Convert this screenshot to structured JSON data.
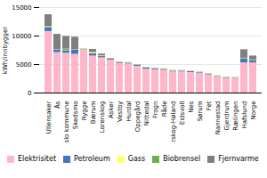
{
  "chart_data": {
    "type": "bar",
    "stacked": true,
    "categories": [
      "Ullensaker",
      "Ås",
      "Oslo kommune",
      "Skedsmo",
      "Rygge",
      "Bærum",
      "Lorenskog",
      "Asker",
      "Vestby",
      "Hurdal",
      "Oppegård",
      "Nittedal",
      "Frogn",
      "Råde",
      "Aurskog-Høland",
      "Eidsvoll",
      "Nes",
      "Sørum",
      "Fet",
      "Nannestad",
      "Gjerdrum",
      "Rælingen",
      "Hafslund",
      "Norge"
    ],
    "series": [
      {
        "name": "Elektrisitet",
        "color": "#ffb6c8",
        "values": [
          10800,
          7100,
          7000,
          6800,
          7500,
          6500,
          6200,
          5800,
          5200,
          5100,
          4700,
          4200,
          4100,
          4000,
          3700,
          3700,
          3600,
          3500,
          3200,
          2800,
          2600,
          2500,
          5300,
          5300
        ]
      },
      {
        "name": "Petroleum",
        "color": "#4472c4",
        "values": [
          700,
          400,
          400,
          700,
          100,
          400,
          200,
          200,
          150,
          150,
          200,
          200,
          150,
          150,
          150,
          150,
          150,
          100,
          100,
          100,
          100,
          100,
          700,
          400
        ]
      },
      {
        "name": "Gass",
        "color": "#ffff66",
        "values": [
          100,
          50,
          50,
          50,
          100,
          200,
          100,
          50,
          50,
          50,
          50,
          50,
          50,
          50,
          50,
          50,
          50,
          50,
          50,
          50,
          50,
          50,
          50,
          50
        ]
      },
      {
        "name": "Biobrensel",
        "color": "#70ad47",
        "values": [
          50,
          50,
          300,
          50,
          50,
          50,
          50,
          50,
          50,
          50,
          50,
          50,
          50,
          50,
          50,
          50,
          50,
          50,
          50,
          50,
          50,
          50,
          50,
          50
        ]
      },
      {
        "name": "Fjernvarme",
        "color": "#7f7f7f",
        "values": [
          2100,
          2700,
          2200,
          2200,
          0,
          500,
          300,
          0,
          0,
          0,
          0,
          0,
          0,
          0,
          0,
          0,
          0,
          0,
          0,
          0,
          0,
          0,
          1500,
          700
        ]
      }
    ],
    "ylabel": "kWh/innbygger",
    "ylim": [
      0,
      15000
    ],
    "yticks": [
      0,
      5000,
      10000,
      15000
    ],
    "grid": true,
    "legend": "bottom"
  }
}
